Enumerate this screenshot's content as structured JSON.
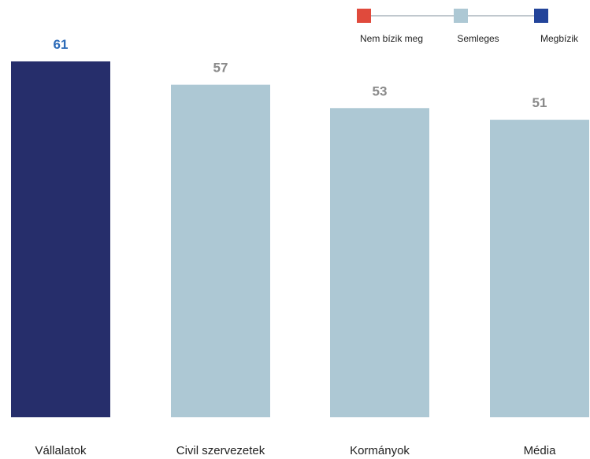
{
  "chart_data": {
    "type": "bar",
    "categories": [
      "Vállalatok",
      "Civil szervezetek",
      "Kormányok",
      "Média"
    ],
    "values": [
      61,
      57,
      53,
      51
    ],
    "ylim": [
      0,
      61
    ],
    "bar_colors": [
      "#262e6b",
      "#adc8d4",
      "#adc8d4",
      "#adc8d4"
    ],
    "value_label_colors": [
      "#2c6bb8",
      "#8a8a8a",
      "#8a8a8a",
      "#8a8a8a"
    ],
    "legend": {
      "placement": "top-right",
      "items": [
        {
          "label": "Nem bízik meg",
          "color": "#e04a3c"
        },
        {
          "label": "Semleges",
          "color": "#adc8d4"
        },
        {
          "label": "Megbízik",
          "color": "#23449a"
        }
      ],
      "line_color": "#9aa8b0"
    }
  }
}
